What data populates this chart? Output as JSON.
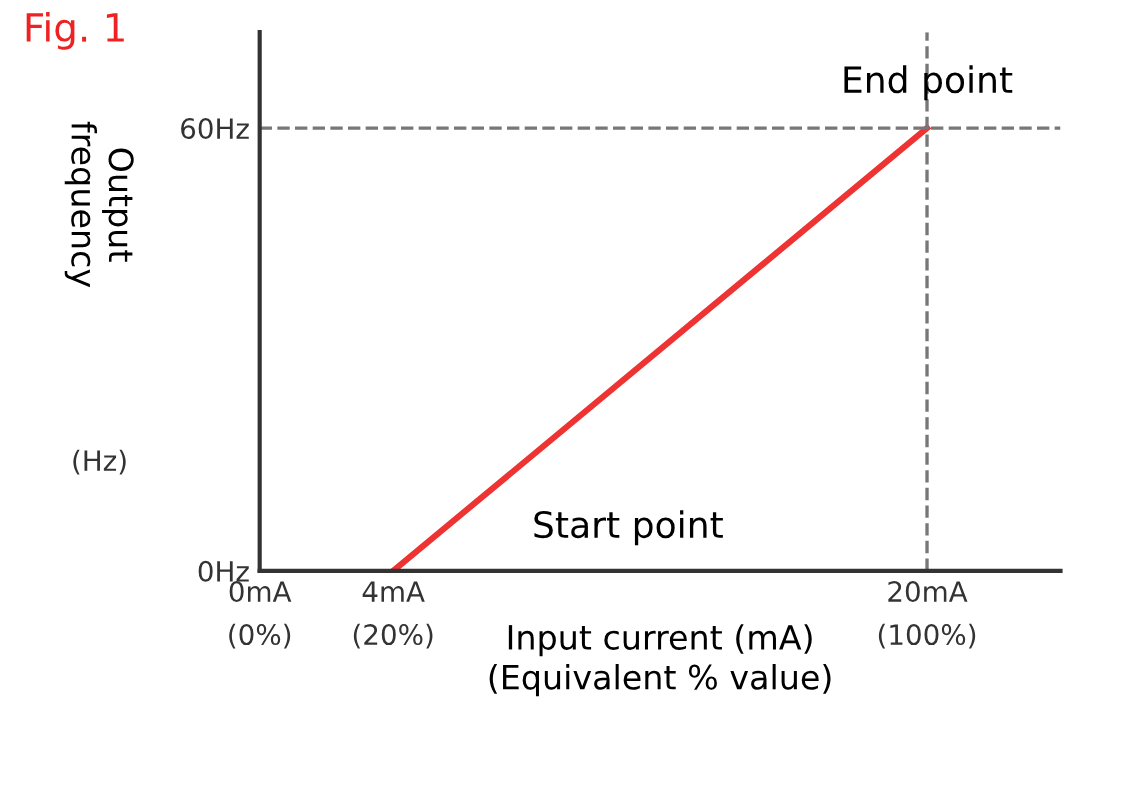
{
  "chart_data": {
    "type": "line",
    "title": "Fig. 1",
    "xlabel": "Input current (mA)\n(Equivalent % value)",
    "ylabel": "Output\nfrequency",
    "annotations": [
      "(Hz)",
      {
        "text": "End point",
        "x": 20,
        "y": 60
      },
      "Start point"
    ],
    "series": [
      {
        "color": "#ee3333",
        "x": [
          4,
          20
        ],
        "values": [
          0,
          60
        ]
      }
    ],
    "xlim": [
      0,
      24
    ],
    "ylim": [
      0,
      73
    ],
    "xticks": [
      {
        "value": 0,
        "label": "0mA"
      },
      {
        "value": 4,
        "label": "4mA"
      },
      {
        "value": 20,
        "label": "20mA"
      }
    ],
    "x2lim": [
      0,
      120
    ],
    "x2ticks": [
      {
        "value": 0,
        "label": "(0%)"
      },
      {
        "value": 20,
        "label": "(20%)"
      },
      {
        "value": 100,
        "label": "(100%)"
      }
    ],
    "yticks": [
      {
        "value": 0,
        "label": "0Hz"
      },
      {
        "value": 60,
        "label": "60Hz"
      }
    ],
    "ref_lines": [
      {
        "axis": "x",
        "value": 20,
        "color": "#777777",
        "line_style": "dashed"
      },
      {
        "axis": "y",
        "value": 60,
        "color": "#777777",
        "line_style": "dashed"
      }
    ],
    "grid": false,
    "legend": false,
    "marker": "none",
    "line_style": "solid"
  }
}
